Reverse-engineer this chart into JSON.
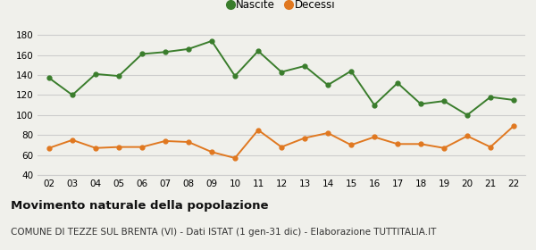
{
  "years": [
    "02",
    "03",
    "04",
    "05",
    "06",
    "07",
    "08",
    "09",
    "10",
    "11",
    "12",
    "13",
    "14",
    "15",
    "16",
    "17",
    "18",
    "19",
    "20",
    "21",
    "22"
  ],
  "nascite": [
    137,
    120,
    141,
    139,
    161,
    163,
    166,
    174,
    139,
    164,
    143,
    149,
    130,
    144,
    110,
    132,
    111,
    114,
    100,
    118,
    115
  ],
  "decessi": [
    67,
    75,
    67,
    68,
    68,
    74,
    73,
    63,
    57,
    85,
    68,
    77,
    82,
    70,
    78,
    71,
    71,
    67,
    79,
    68,
    89
  ],
  "nascite_color": "#3a7d2c",
  "decessi_color": "#e07820",
  "bg_color": "#f0f0eb",
  "grid_color": "#cccccc",
  "ylim": [
    40,
    185
  ],
  "yticks": [
    40,
    60,
    80,
    100,
    120,
    140,
    160,
    180
  ],
  "title": "Movimento naturale della popolazione",
  "subtitle": "COMUNE DI TEZZE SUL BRENTA (VI) - Dati ISTAT (1 gen-31 dic) - Elaborazione TUTTITALIA.IT",
  "legend_nascite": "Nascite",
  "legend_decessi": "Decessi",
  "title_fontsize": 9.5,
  "subtitle_fontsize": 7.5,
  "tick_fontsize": 7.5,
  "legend_fontsize": 8.5
}
